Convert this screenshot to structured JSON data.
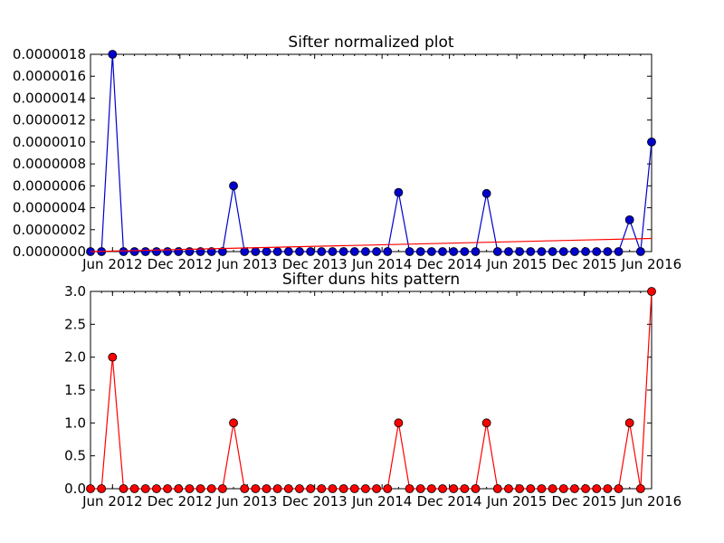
{
  "chart_data": [
    {
      "type": "line",
      "title": "Sifter normalized plot",
      "xlabel": "",
      "ylabel": "",
      "x_tick_labels": [
        "Jun 2012",
        "Dec 2012",
        "Jun 2013",
        "Dec 2013",
        "Jun 2014",
        "Dec 2014",
        "Jun 2015",
        "Dec 2015",
        "Jun 2016"
      ],
      "y_tick_labels": [
        "0.0000000",
        "0.0000002",
        "0.0000004",
        "0.0000006",
        "0.0000008",
        "0.0000010",
        "0.0000012",
        "0.0000014",
        "0.0000016",
        "0.0000018"
      ],
      "ylim": [
        0,
        1.8e-06
      ],
      "grid": false,
      "x_index": [
        0,
        1,
        2,
        3,
        4,
        5,
        6,
        7,
        8,
        9,
        10,
        11,
        12,
        13,
        14,
        15,
        16,
        17,
        18,
        19,
        20,
        21,
        22,
        23,
        24,
        25,
        26,
        27,
        28,
        29,
        30,
        31,
        32,
        33,
        34,
        35,
        36,
        37,
        38,
        39,
        40,
        41,
        42,
        43,
        44,
        45,
        46,
        47,
        48,
        49,
        50,
        51
      ],
      "series": [
        {
          "color": "#0000cc",
          "marker": "circle",
          "values": [
            0,
            0,
            1.8e-06,
            0,
            0,
            0,
            0,
            0,
            0,
            0,
            0,
            0,
            0,
            6e-07,
            0,
            0,
            0,
            0,
            0,
            0,
            0,
            0,
            0,
            0,
            0,
            0,
            0,
            0,
            5.4e-07,
            0,
            0,
            0,
            0,
            0,
            0,
            0,
            5.3e-07,
            0,
            0,
            0,
            0,
            0,
            0,
            0,
            0,
            0,
            0,
            0,
            0,
            2.9e-07,
            0,
            1e-06
          ]
        },
        {
          "color": "#ff0000",
          "marker": "none",
          "trend_line": true,
          "values_endpoints": [
            0,
            1.2e-07
          ]
        }
      ]
    },
    {
      "type": "line",
      "title": "Sifter duns hits pattern",
      "xlabel": "",
      "ylabel": "",
      "x_tick_labels": [
        "Jun 2012",
        "Dec 2012",
        "Jun 2013",
        "Dec 2013",
        "Jun 2014",
        "Dec 2014",
        "Jun 2015",
        "Dec 2015",
        "Jun 2016"
      ],
      "y_tick_labels": [
        "0.0",
        "0.5",
        "1.0",
        "1.5",
        "2.0",
        "2.5",
        "3.0"
      ],
      "ylim": [
        0,
        3
      ],
      "grid": false,
      "x_index": [
        0,
        1,
        2,
        3,
        4,
        5,
        6,
        7,
        8,
        9,
        10,
        11,
        12,
        13,
        14,
        15,
        16,
        17,
        18,
        19,
        20,
        21,
        22,
        23,
        24,
        25,
        26,
        27,
        28,
        29,
        30,
        31,
        32,
        33,
        34,
        35,
        36,
        37,
        38,
        39,
        40,
        41,
        42,
        43,
        44,
        45,
        46,
        47,
        48,
        49,
        50,
        51
      ],
      "series": [
        {
          "color": "#ff0000",
          "marker": "circle",
          "values": [
            0,
            0,
            2,
            0,
            0,
            0,
            0,
            0,
            0,
            0,
            0,
            0,
            0,
            1,
            0,
            0,
            0,
            0,
            0,
            0,
            0,
            0,
            0,
            0,
            0,
            0,
            0,
            0,
            1,
            0,
            0,
            0,
            0,
            0,
            0,
            0,
            1,
            0,
            0,
            0,
            0,
            0,
            0,
            0,
            0,
            0,
            0,
            0,
            0,
            1,
            0,
            3
          ]
        }
      ]
    }
  ]
}
